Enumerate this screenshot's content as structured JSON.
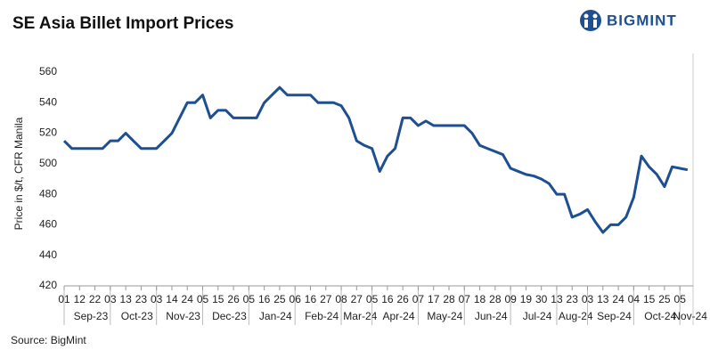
{
  "chart_data": {
    "type": "line",
    "title": "SE Asia Billet Import Prices",
    "ylabel": "Price in $/t, CFR Manila",
    "source": "Source: BigMint",
    "logo": "BIGMINT",
    "ylim": [
      420,
      560
    ],
    "yticks": [
      420,
      440,
      460,
      480,
      500,
      520,
      540,
      560
    ],
    "grid": false,
    "months": [
      {
        "label": "Sep-23",
        "days": [
          "01",
          "12",
          "22"
        ]
      },
      {
        "label": "Oct-23",
        "days": [
          "03",
          "13",
          "23"
        ]
      },
      {
        "label": "Nov-23",
        "days": [
          "03",
          "14",
          "24"
        ]
      },
      {
        "label": "Dec-23",
        "days": [
          "05",
          "15",
          "26"
        ]
      },
      {
        "label": "Jan-24",
        "days": [
          "05",
          "16",
          "25"
        ]
      },
      {
        "label": "Feb-24",
        "days": [
          "06",
          "16",
          "27"
        ]
      },
      {
        "label": "Mar-24",
        "days": [
          "08",
          "27"
        ]
      },
      {
        "label": "Apr-24",
        "days": [
          "05",
          "16",
          "26"
        ]
      },
      {
        "label": "May-24",
        "days": [
          "07",
          "17",
          "28"
        ]
      },
      {
        "label": "Jun-24",
        "days": [
          "07",
          "18",
          "28"
        ]
      },
      {
        "label": "Jul-24",
        "days": [
          "09",
          "19",
          "30"
        ]
      },
      {
        "label": "Aug-24",
        "days": [
          "13",
          "23"
        ]
      },
      {
        "label": "Sep-24",
        "days": [
          "03",
          "13",
          "24"
        ]
      },
      {
        "label": "Oct-24",
        "days": [
          "04",
          "15",
          "25"
        ]
      },
      {
        "label": "Nov-24",
        "days": [
          "05"
        ]
      }
    ],
    "series": [
      {
        "name": "Price",
        "color": "#1d4f91",
        "values": [
          515,
          510,
          510,
          510,
          510,
          510,
          515,
          515,
          520,
          515,
          510,
          510,
          510,
          515,
          520,
          530,
          540,
          540,
          545,
          530,
          535,
          535,
          530,
          530,
          530,
          530,
          540,
          545,
          550,
          545,
          545,
          545,
          545,
          540,
          540,
          540,
          538,
          530,
          515,
          512,
          510,
          495,
          505,
          510,
          530,
          530,
          525,
          528,
          525,
          525,
          525,
          525,
          525,
          520,
          512,
          510,
          508,
          506,
          497,
          495,
          493,
          492,
          490,
          487,
          480,
          480,
          465,
          467,
          470,
          462,
          455,
          460,
          460,
          465,
          478,
          505,
          498,
          493,
          485,
          498,
          497,
          496
        ]
      }
    ]
  }
}
